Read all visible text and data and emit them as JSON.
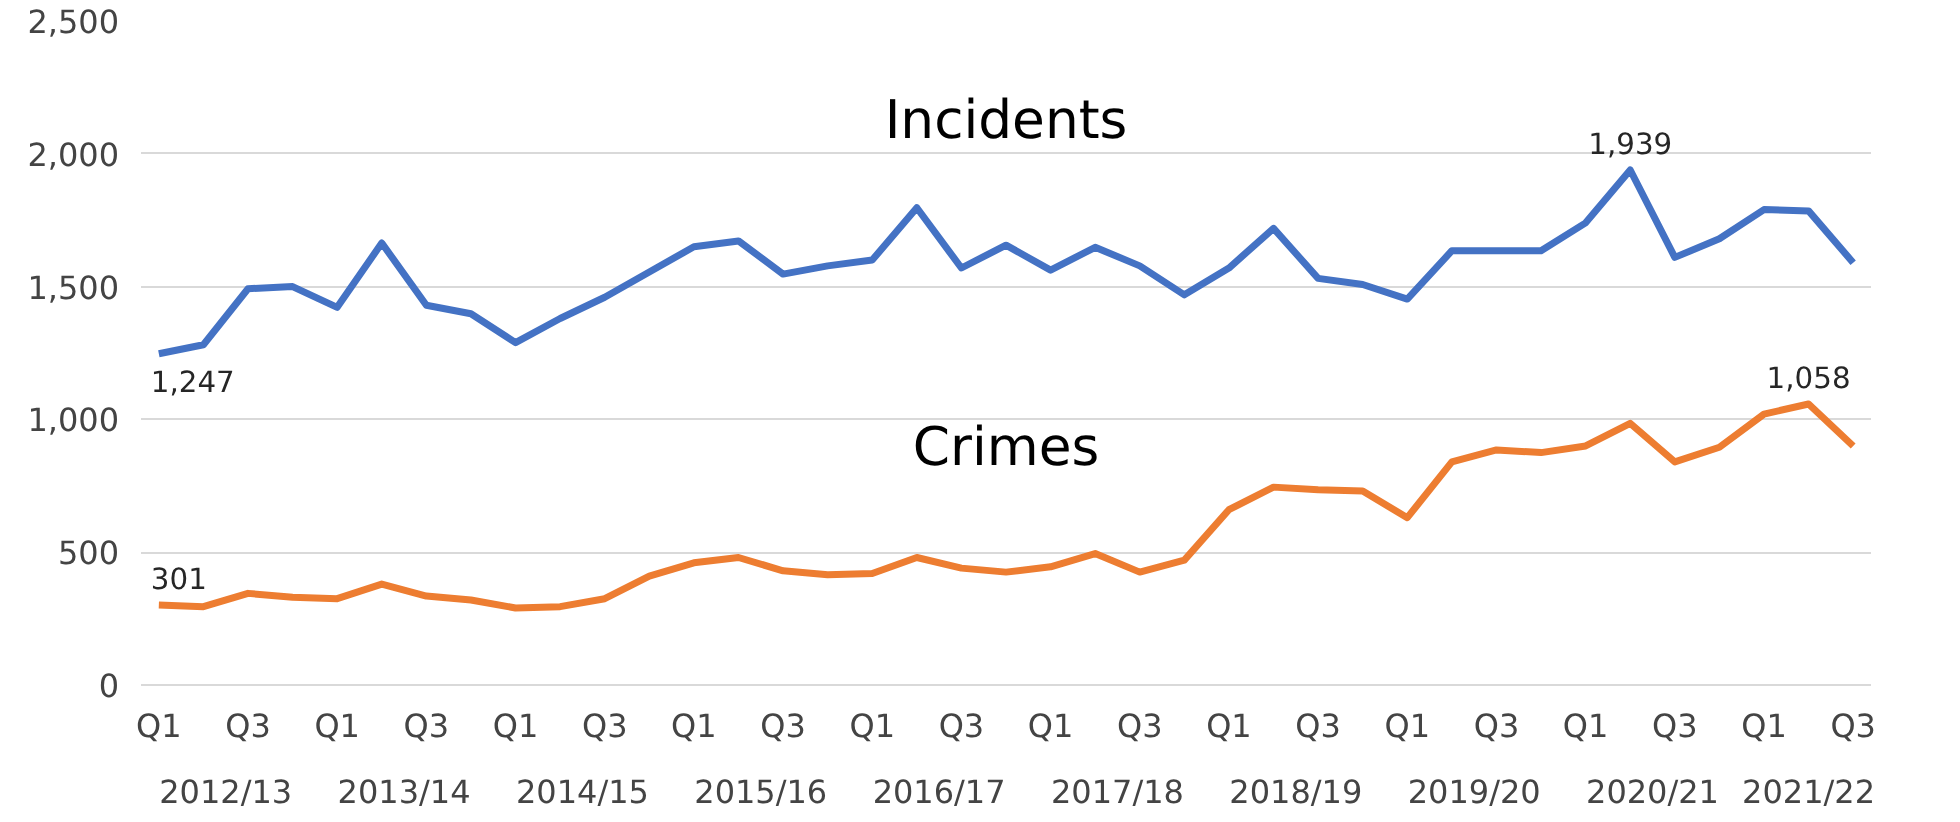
{
  "chart_data": {
    "type": "line",
    "categories": [
      "Q1",
      null,
      "Q3",
      null,
      "Q1",
      null,
      "Q3",
      null,
      "Q1",
      null,
      "Q3",
      null,
      "Q1",
      null,
      "Q3",
      null,
      "Q1",
      null,
      "Q3",
      null,
      "Q1",
      null,
      "Q3",
      null,
      "Q1",
      null,
      "Q3",
      null,
      "Q1",
      null,
      "Q3",
      null,
      "Q1",
      null,
      "Q3",
      null,
      "Q1",
      null,
      "Q3"
    ],
    "series": [
      {
        "name": "Incidents",
        "color": "#4472c4",
        "values": [
          1247,
          1281,
          1492,
          1500,
          1422,
          1664,
          1430,
          1398,
          1289,
          1380,
          1460,
          1555,
          1650,
          1672,
          1547,
          1578,
          1600,
          1797,
          1570,
          1656,
          1562,
          1648,
          1578,
          1469,
          1570,
          1719,
          1531,
          1508,
          1453,
          1635,
          1635,
          1635,
          1740,
          1939,
          1610,
          1680,
          1790,
          1785,
          1590
        ],
        "value_labels": [
          "1,247",
          null,
          null,
          null,
          null,
          null,
          null,
          null,
          null,
          null,
          null,
          null,
          null,
          null,
          null,
          null,
          null,
          null,
          null,
          null,
          null,
          null,
          null,
          null,
          null,
          null,
          null,
          null,
          null,
          null,
          null,
          null,
          null,
          "1,939",
          null,
          null,
          null,
          null,
          null
        ]
      },
      {
        "name": "Crimes",
        "color": "#ed7d31",
        "values": [
          301,
          295,
          345,
          330,
          325,
          380,
          335,
          320,
          290,
          295,
          325,
          410,
          460,
          480,
          430,
          415,
          420,
          480,
          440,
          425,
          445,
          495,
          425,
          470,
          660,
          745,
          735,
          730,
          630,
          840,
          885,
          875,
          900,
          985,
          840,
          895,
          1020,
          1058,
          900
        ],
        "value_labels": [
          "301",
          null,
          null,
          null,
          null,
          null,
          null,
          null,
          null,
          null,
          null,
          null,
          null,
          null,
          null,
          null,
          null,
          null,
          null,
          null,
          null,
          null,
          null,
          null,
          null,
          null,
          null,
          null,
          null,
          null,
          null,
          null,
          null,
          null,
          null,
          null,
          null,
          "1,058",
          null
        ]
      }
    ],
    "annotations": [
      "2012/13",
      "2013/14",
      "2014/15",
      "2015/16",
      "2016/17",
      "2017/18",
      "2018/19",
      "2019/20",
      "2020/21",
      "2021/22"
    ],
    "ylim": [
      0,
      2500
    ],
    "yticks": [
      0,
      {
        "value": 500,
        "label": "500"
      },
      {
        "value": 1000,
        "label": "1,000"
      },
      {
        "value": 1500,
        "label": "1,500"
      },
      {
        "value": 2000,
        "label": "2,000"
      },
      {
        "value": 2500,
        "label": "2,500"
      }
    ],
    "grid": "y",
    "marker": "none",
    "line_style": "solid"
  }
}
